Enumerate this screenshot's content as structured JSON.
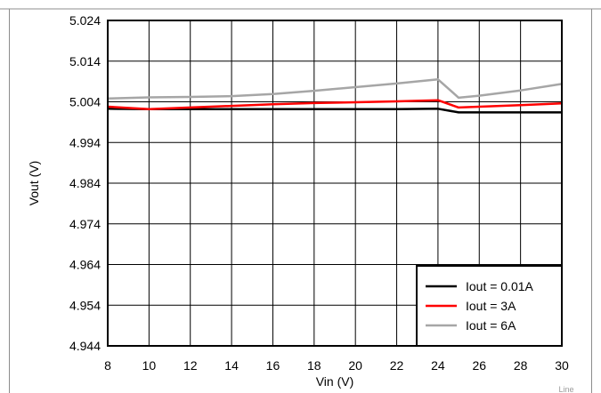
{
  "chart_data": {
    "type": "line",
    "title": "",
    "xlabel": "Vin (V)",
    "ylabel": "Vout (V)",
    "xlim": [
      8,
      30
    ],
    "ylim": [
      4.944,
      5.024
    ],
    "xticks": [
      8,
      10,
      12,
      14,
      16,
      18,
      20,
      22,
      24,
      26,
      28,
      30
    ],
    "yticks": [
      4.944,
      4.954,
      4.964,
      4.974,
      4.984,
      4.994,
      5.004,
      5.014,
      5.024
    ],
    "ytick_labels": [
      "4.944",
      "4.954",
      "4.964",
      "4.974",
      "4.984",
      "4.994",
      "5.004",
      "5.014",
      "5.024"
    ],
    "grid": true,
    "legend_position": "bottom-right",
    "footnote": "Line",
    "series": [
      {
        "name": "Iout = 0.01A",
        "color": "#000000",
        "x": [
          8,
          10,
          12,
          14,
          16,
          18,
          20,
          22,
          24,
          25,
          26,
          28,
          30
        ],
        "y": [
          5.0023,
          5.0022,
          5.0022,
          5.0022,
          5.0022,
          5.0022,
          5.0022,
          5.0022,
          5.0023,
          5.0014,
          5.0014,
          5.0014,
          5.0014
        ]
      },
      {
        "name": "Iout = 3A",
        "color": "#ff0000",
        "x": [
          8,
          10,
          12,
          14,
          16,
          18,
          20,
          22,
          24,
          25,
          26,
          28,
          30
        ],
        "y": [
          5.0028,
          5.0022,
          5.0026,
          5.003,
          5.0034,
          5.0037,
          5.0039,
          5.0041,
          5.0044,
          5.0026,
          5.0028,
          5.0032,
          5.0036
        ]
      },
      {
        "name": "Iout = 6A",
        "color": "#a6a6a6",
        "x": [
          8,
          10,
          12,
          14,
          16,
          18,
          20,
          22,
          24,
          25,
          26,
          28,
          30
        ],
        "y": [
          5.0048,
          5.0051,
          5.0052,
          5.0054,
          5.0059,
          5.0067,
          5.0076,
          5.0085,
          5.0095,
          5.005,
          5.0055,
          5.0068,
          5.0084
        ]
      }
    ]
  }
}
